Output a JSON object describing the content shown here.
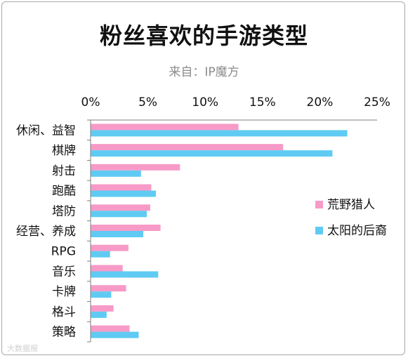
{
  "title": "粉丝喜欢的手游类型",
  "subtitle": "来自：IP魔方",
  "watermark": "大数据报",
  "colors": {
    "series1": "#f79ac8",
    "series2": "#5fcbf3",
    "axis": "#7f7f7f"
  },
  "chart_data": {
    "type": "bar",
    "orientation": "horizontal",
    "title": "粉丝喜欢的手游类型",
    "subtitle": "来自：IP魔方",
    "xlim": [
      0,
      25
    ],
    "x_ticks": [
      0,
      5,
      10,
      15,
      20,
      25
    ],
    "x_tick_labels": [
      "0%",
      "5%",
      "10%",
      "15%",
      "20%",
      "25%"
    ],
    "x_axis_position": "top",
    "grid": false,
    "legend_position": "right",
    "categories": [
      "休闲、益智",
      "棋牌",
      "射击",
      "跑酷",
      "塔防",
      "经营、养成",
      "RPG",
      "音乐",
      "卡牌",
      "格斗",
      "策略"
    ],
    "series": [
      {
        "name": "荒野猎人",
        "color": "#f79ac8",
        "values": [
          12.9,
          16.8,
          7.8,
          5.3,
          5.2,
          6.1,
          3.3,
          2.8,
          3.1,
          2.0,
          3.4
        ]
      },
      {
        "name": "太阳的后裔",
        "color": "#5fcbf3",
        "values": [
          22.4,
          21.1,
          4.4,
          5.7,
          4.9,
          4.6,
          1.7,
          5.9,
          1.8,
          1.4,
          4.2
        ]
      }
    ]
  }
}
